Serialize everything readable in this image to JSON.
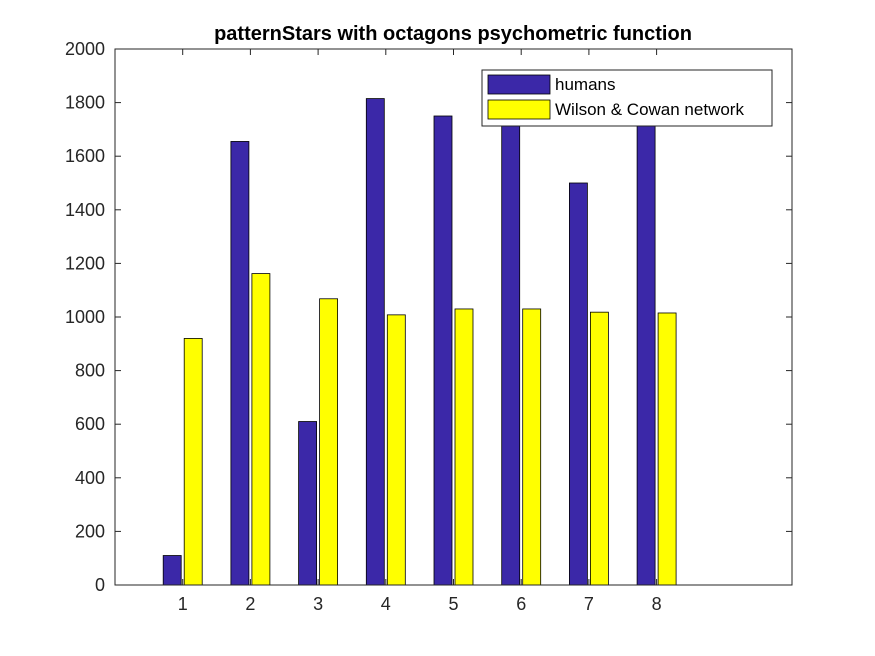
{
  "chart_data": {
    "type": "bar",
    "title": "patternStars with octagons psychometric function",
    "xlabel": "",
    "ylabel": "",
    "categories": [
      "1",
      "2",
      "3",
      "4",
      "5",
      "6",
      "7",
      "8"
    ],
    "ylim": [
      0,
      2000
    ],
    "yticks": [
      0,
      200,
      400,
      600,
      800,
      1000,
      1200,
      1400,
      1600,
      1800,
      2000
    ],
    "xlim": [
      0,
      10
    ],
    "series": [
      {
        "name": "humans",
        "color": "#3B28A8",
        "values": [
          110,
          1655,
          610,
          1815,
          1750,
          1735,
          1500,
          1725
        ]
      },
      {
        "name": "Wilson & Cowan network",
        "color": "#FFFF00",
        "values": [
          920,
          1162,
          1068,
          1008,
          1030,
          1030,
          1018,
          1015
        ]
      }
    ],
    "legend_position": "top-right",
    "grid": false
  }
}
